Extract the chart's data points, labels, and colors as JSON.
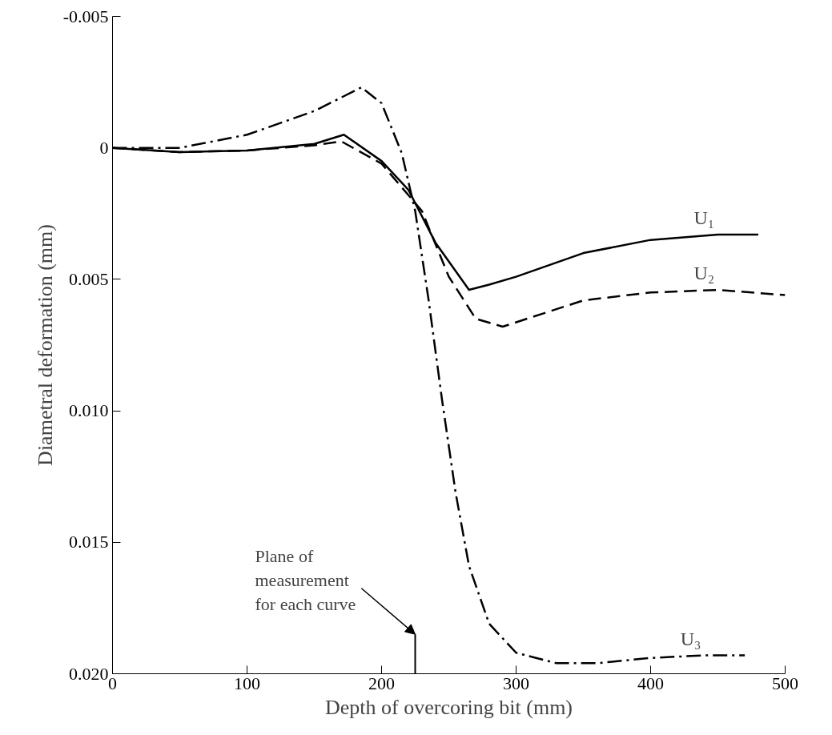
{
  "chart_data": {
    "type": "line",
    "xlabel": "Depth of overcoring bit (mm)",
    "ylabel": "Diametral deformation (mm)",
    "xlim": [
      0,
      500
    ],
    "ylim": [
      0.02,
      -0.005
    ],
    "xticks": [
      0,
      100,
      200,
      300,
      400,
      500
    ],
    "yticks": [
      -0.005,
      0,
      0.005,
      {
        "value": 0.01,
        "label": "0.010"
      },
      0.015,
      {
        "value": 0.02,
        "label": "0.020"
      }
    ],
    "grid": false,
    "marker": "none",
    "series": [
      {
        "name": "U₁",
        "color": "#000000",
        "line_style": "solid",
        "x": [
          0,
          50,
          100,
          150,
          172,
          200,
          220,
          240,
          265,
          280,
          300,
          350,
          400,
          450,
          480
        ],
        "values": [
          0,
          0.00016,
          0.0001,
          -0.00015,
          -0.0005,
          0.0005,
          0.0016,
          0.0036,
          0.0054,
          0.0052,
          0.0049,
          0.004,
          0.0035,
          0.0033,
          0.0033
        ]
      },
      {
        "name": "U₂",
        "color": "#000000",
        "line_style": "dashed",
        "x": [
          0,
          50,
          100,
          150,
          170,
          200,
          230,
          250,
          270,
          290,
          320,
          350,
          400,
          450,
          500
        ],
        "values": [
          0,
          0.00016,
          0.0001,
          -0.0001,
          -0.00025,
          0.0006,
          0.0024,
          0.0049,
          0.0065,
          0.0068,
          0.0063,
          0.0058,
          0.0055,
          0.0054,
          0.0056
        ]
      },
      {
        "name": "U₃",
        "color": "#000000",
        "line_style": "dashdot",
        "x": [
          0,
          50,
          100,
          150,
          185,
          200,
          215,
          225,
          235,
          245,
          255,
          265,
          280,
          300,
          330,
          360,
          400,
          440,
          470
        ],
        "values": [
          0,
          0,
          -0.0005,
          -0.0014,
          -0.0023,
          -0.0017,
          0.0002,
          0.0024,
          0.0058,
          0.0096,
          0.0131,
          0.0159,
          0.0181,
          0.0192,
          0.0196,
          0.0196,
          0.0194,
          0.0193,
          0.0193
        ]
      }
    ],
    "annotations": [
      "Plane of\nmeasurement\nfor each curve"
    ]
  }
}
